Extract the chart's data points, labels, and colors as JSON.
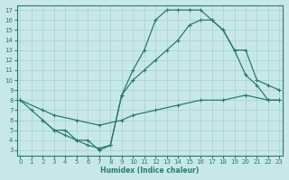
{
  "bg_color": "#c8e8e8",
  "grid_color": "#aad4d4",
  "line_color": "#2a7a6a",
  "xlabel": "Humidex (Indice chaleur)",
  "xlim": [
    -0.3,
    23.3
  ],
  "ylim": [
    2.5,
    17.5
  ],
  "xlabel_ticks": [
    0,
    1,
    2,
    3,
    4,
    5,
    6,
    7,
    8,
    9,
    10,
    11,
    12,
    13,
    14,
    15,
    16,
    17,
    18,
    19,
    20,
    21,
    22,
    23
  ],
  "ylabel_ticks": [
    3,
    4,
    5,
    6,
    7,
    8,
    9,
    10,
    11,
    12,
    13,
    14,
    15,
    16,
    17
  ],
  "line1_x": [
    0,
    1,
    2,
    3,
    4,
    5,
    6,
    7,
    8,
    9,
    10,
    11,
    12,
    13,
    14,
    15,
    16,
    17,
    18,
    19,
    20,
    21,
    22,
    23
  ],
  "line1_y": [
    8,
    7,
    6,
    5,
    5,
    4,
    4,
    3,
    3.5,
    8.5,
    11,
    13,
    16,
    17,
    17,
    17,
    17,
    16,
    15,
    13,
    10.5,
    9.5,
    8,
    8
  ],
  "line2_x": [
    0,
    2,
    3,
    5,
    7,
    9,
    10,
    12,
    14,
    16,
    18,
    20,
    22,
    23
  ],
  "line2_y": [
    8,
    7,
    6.5,
    6,
    5.5,
    6,
    6.5,
    7,
    7.5,
    8,
    8,
    8.5,
    8,
    8
  ],
  "line3_x": [
    2,
    3,
    4,
    5,
    6,
    7,
    8,
    9,
    10,
    11,
    12,
    13,
    14,
    15,
    16,
    17,
    18,
    19,
    20,
    21,
    22,
    23
  ],
  "line3_y": [
    6,
    5,
    4.5,
    4,
    3.5,
    3.2,
    3.5,
    8.5,
    10,
    11,
    12,
    13,
    14,
    15.5,
    16,
    16,
    15,
    13,
    13,
    10,
    9.5,
    9
  ]
}
